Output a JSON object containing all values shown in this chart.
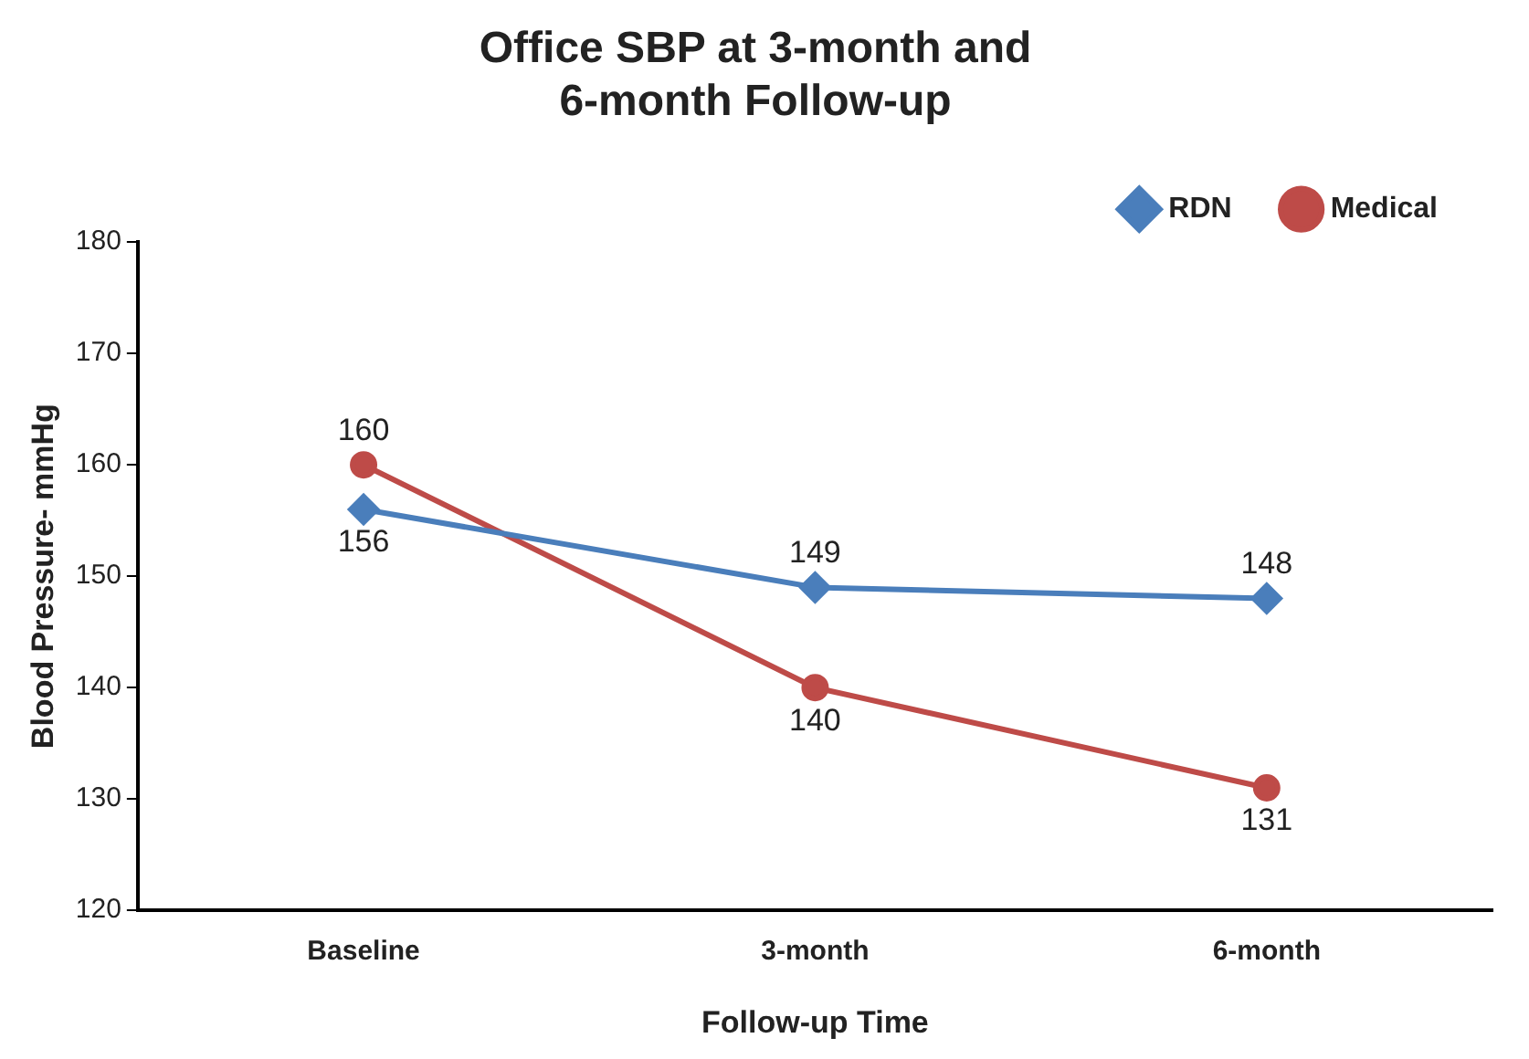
{
  "chart_data": {
    "type": "line",
    "title": "Office SBP at 3-month and 6-month Follow-up",
    "xlabel": "Follow-up Time",
    "ylabel": "Blood Pressure- mmHg",
    "categories": [
      "Baseline",
      "3-month",
      "6-month"
    ],
    "series": [
      {
        "name": "RDN",
        "color": "#4a7ebb",
        "marker": "diamond",
        "values": [
          156,
          149,
          148
        ]
      },
      {
        "name": "Medical",
        "color": "#be4b48",
        "marker": "circle",
        "values": [
          160,
          140,
          131
        ]
      }
    ],
    "ylim": [
      120,
      180
    ],
    "yticks": [
      120,
      130,
      140,
      150,
      160,
      170,
      180
    ],
    "grid": false,
    "legend": "top right",
    "data_labels": true
  }
}
